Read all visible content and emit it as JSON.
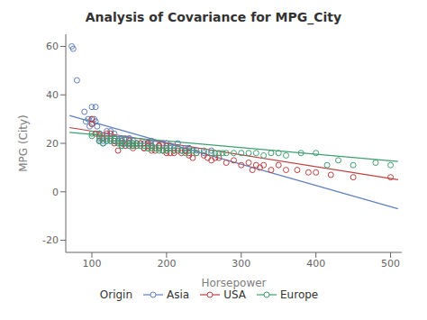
{
  "chart_data": {
    "type": "scatter",
    "title": "Analysis of Covariance for MPG_City",
    "x_label": "Horsepower",
    "y_label": "MPG (City)",
    "legend_title": "Origin",
    "xlim": [
      65,
      515
    ],
    "ylim": [
      -25,
      65
    ],
    "xticks": [
      100,
      200,
      300,
      400,
      500
    ],
    "yticks": [
      -20,
      0,
      20,
      40,
      60
    ],
    "grid": false,
    "legend": "bottom",
    "marker": "circle",
    "series": [
      {
        "name": "Asia",
        "color": "#6080c0",
        "x": [
          73,
          75,
          80,
          90,
          92,
          95,
          97,
          100,
          100,
          100,
          103,
          105,
          105,
          107,
          110,
          110,
          110,
          110,
          113,
          115,
          115,
          120,
          120,
          120,
          125,
          125,
          130,
          130,
          130,
          130,
          135,
          138,
          140,
          140,
          140,
          140,
          143,
          145,
          148,
          150,
          150,
          150,
          150,
          155,
          155,
          160,
          165,
          165,
          170,
          175,
          175,
          178,
          180,
          180,
          185,
          190,
          195,
          200,
          200,
          200,
          205,
          210,
          215,
          220,
          225,
          225,
          225,
          230,
          230,
          240,
          250,
          260
        ],
        "values": [
          60,
          59,
          46,
          33,
          29,
          30,
          27,
          28,
          30,
          35,
          30,
          29,
          35,
          27,
          24,
          21,
          24,
          21,
          22,
          20,
          21,
          25,
          23,
          21,
          21,
          25,
          24,
          21,
          22,
          21,
          21,
          22,
          22,
          20,
          21,
          19,
          20,
          22,
          20,
          22,
          22,
          20,
          19,
          21,
          19,
          20,
          19,
          20,
          20,
          19,
          20,
          20,
          21,
          19,
          20,
          19,
          20,
          20,
          18,
          18,
          19,
          18,
          20,
          17,
          17,
          18,
          17,
          18,
          18,
          17,
          16,
          17
        ],
        "fit": {
          "x": [
            70,
            510
          ],
          "values": [
            31.5,
            -7
          ]
        }
      },
      {
        "name": "USA",
        "color": "#c04040",
        "x": [
          100,
          100,
          105,
          110,
          115,
          120,
          125,
          125,
          130,
          130,
          135,
          140,
          140,
          145,
          150,
          150,
          155,
          155,
          160,
          160,
          165,
          170,
          170,
          175,
          175,
          175,
          180,
          180,
          180,
          185,
          190,
          190,
          190,
          195,
          200,
          200,
          200,
          205,
          210,
          210,
          215,
          220,
          225,
          230,
          230,
          235,
          240,
          250,
          255,
          260,
          265,
          270,
          280,
          290,
          300,
          310,
          315,
          320,
          325,
          330,
          340,
          350,
          360,
          375,
          390,
          400,
          420,
          450,
          500
        ],
        "values": [
          30,
          28,
          24,
          23,
          22,
          24,
          24,
          22,
          20,
          21,
          17,
          21,
          20,
          19,
          20,
          21,
          18,
          19,
          19,
          20,
          20,
          18,
          18,
          20,
          19,
          19,
          17,
          18,
          19,
          17,
          19,
          18,
          19,
          17,
          19,
          17,
          16,
          16,
          17,
          16,
          17,
          16,
          17,
          15,
          16,
          14,
          16,
          15,
          14,
          13,
          14,
          14,
          12,
          13,
          11,
          12,
          9,
          11,
          10,
          11,
          9,
          11,
          9,
          9,
          8,
          8,
          7,
          6,
          6
        ],
        "fit": {
          "x": [
            70,
            510
          ],
          "values": [
            26.5,
            5.0
          ]
        }
      },
      {
        "name": "Europe",
        "color": "#40a070",
        "x": [
          100,
          100,
          110,
          110,
          110,
          115,
          120,
          120,
          125,
          125,
          130,
          130,
          135,
          138,
          140,
          140,
          145,
          150,
          150,
          155,
          155,
          155,
          160,
          160,
          165,
          170,
          175,
          175,
          180,
          180,
          185,
          185,
          190,
          190,
          195,
          200,
          200,
          205,
          210,
          215,
          220,
          225,
          230,
          235,
          240,
          250,
          260,
          265,
          270,
          275,
          280,
          290,
          300,
          310,
          320,
          330,
          340,
          350,
          360,
          380,
          400,
          415,
          430,
          450,
          480,
          500
        ],
        "values": [
          24,
          23,
          22,
          24,
          21,
          20,
          21,
          22,
          21,
          22,
          21,
          22,
          20,
          20,
          19,
          21,
          20,
          19,
          20,
          19,
          20,
          20,
          19,
          20,
          19,
          19,
          18,
          18,
          18,
          19,
          18,
          18,
          17,
          18,
          17,
          18,
          17,
          18,
          17,
          18,
          17,
          16,
          17,
          17,
          16,
          17,
          16,
          16,
          16,
          16,
          16,
          16,
          16,
          16,
          16,
          15,
          16,
          16,
          15,
          16,
          16,
          11,
          13,
          11,
          12,
          11
        ],
        "fit": {
          "x": [
            70,
            510
          ],
          "values": [
            24.5,
            12.5
          ]
        }
      }
    ]
  }
}
